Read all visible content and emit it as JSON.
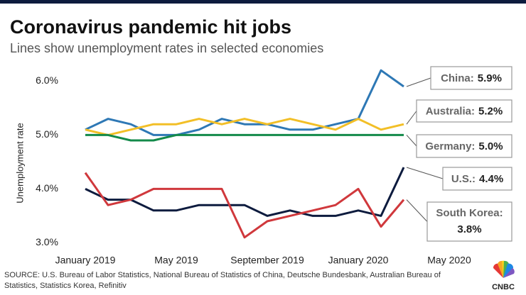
{
  "chart_data": {
    "type": "line",
    "title": "Coronavirus pandemic hit jobs",
    "subtitle": "Lines show unemployment rates in selected economies",
    "y_label": "Unemployment rate",
    "source": "SOURCE: U.S. Bureau of Labor Statistics, National Bureau of Statistics of China, Deutsche Bundesbank, Australian Bureau of Statistics, Statistics Korea, Refinitiv",
    "logo": "CNBC",
    "categories": [
      "January 2019",
      null,
      null,
      null,
      "May 2019",
      null,
      null,
      null,
      "September 2019",
      null,
      null,
      null,
      "January 2020",
      null,
      null,
      null,
      "May 2020"
    ],
    "ylim": [
      2.9,
      6.4
    ],
    "yticks": [
      {
        "value": 3,
        "label": "3.0%"
      },
      {
        "value": 4,
        "label": "4.0%"
      },
      {
        "value": 5,
        "label": "5.0%"
      },
      {
        "value": 6,
        "label": "6.0%"
      }
    ],
    "series": [
      {
        "name": "China:",
        "color": "#2e78b5",
        "values": [
          5.1,
          5.3,
          5.2,
          5.0,
          5.0,
          5.1,
          5.3,
          5.2,
          5.2,
          5.1,
          5.1,
          5.2,
          5.3,
          6.2,
          5.9,
          null,
          null
        ],
        "value_labels": [
          null,
          null,
          null,
          null,
          null,
          null,
          null,
          null,
          null,
          null,
          null,
          null,
          null,
          null,
          "5.9%",
          null,
          null
        ]
      },
      {
        "name": "Australia:",
        "color": "#f2bf27",
        "values": [
          5.1,
          5.0,
          5.1,
          5.2,
          5.2,
          5.3,
          5.2,
          5.3,
          5.2,
          5.3,
          5.2,
          5.1,
          5.3,
          5.1,
          5.2,
          null,
          null
        ],
        "value_labels": [
          null,
          null,
          null,
          null,
          null,
          null,
          null,
          null,
          null,
          null,
          null,
          null,
          null,
          null,
          "5.2%",
          null,
          null
        ]
      },
      {
        "name": "Germany:",
        "color": "#138a4a",
        "values": [
          5.0,
          5.0,
          4.9,
          4.9,
          5.0,
          5.0,
          5.0,
          5.0,
          5.0,
          5.0,
          5.0,
          5.0,
          5.0,
          5.0,
          5.0,
          null,
          null
        ],
        "value_labels": [
          null,
          null,
          null,
          null,
          null,
          null,
          null,
          null,
          null,
          null,
          null,
          null,
          null,
          null,
          "5.0%",
          null,
          null
        ]
      },
      {
        "name": "U.S.:",
        "color": "#0d1b3e",
        "values": [
          4.0,
          3.8,
          3.8,
          3.6,
          3.6,
          3.7,
          3.7,
          3.7,
          3.5,
          3.6,
          3.5,
          3.5,
          3.6,
          3.5,
          4.4,
          null,
          null
        ],
        "value_labels": [
          null,
          null,
          null,
          null,
          null,
          null,
          null,
          null,
          null,
          null,
          null,
          null,
          null,
          null,
          "4.4%",
          null,
          null
        ]
      },
      {
        "name": "South Korea:",
        "color": "#d0383c",
        "values": [
          4.3,
          3.7,
          3.8,
          4.0,
          4.0,
          4.0,
          4.0,
          3.1,
          3.4,
          3.5,
          3.6,
          3.7,
          4.0,
          3.3,
          3.8,
          null,
          null
        ],
        "value_labels": [
          null,
          null,
          null,
          null,
          null,
          null,
          null,
          null,
          null,
          null,
          null,
          null,
          null,
          null,
          "3.8%",
          null,
          null
        ]
      }
    ]
  }
}
